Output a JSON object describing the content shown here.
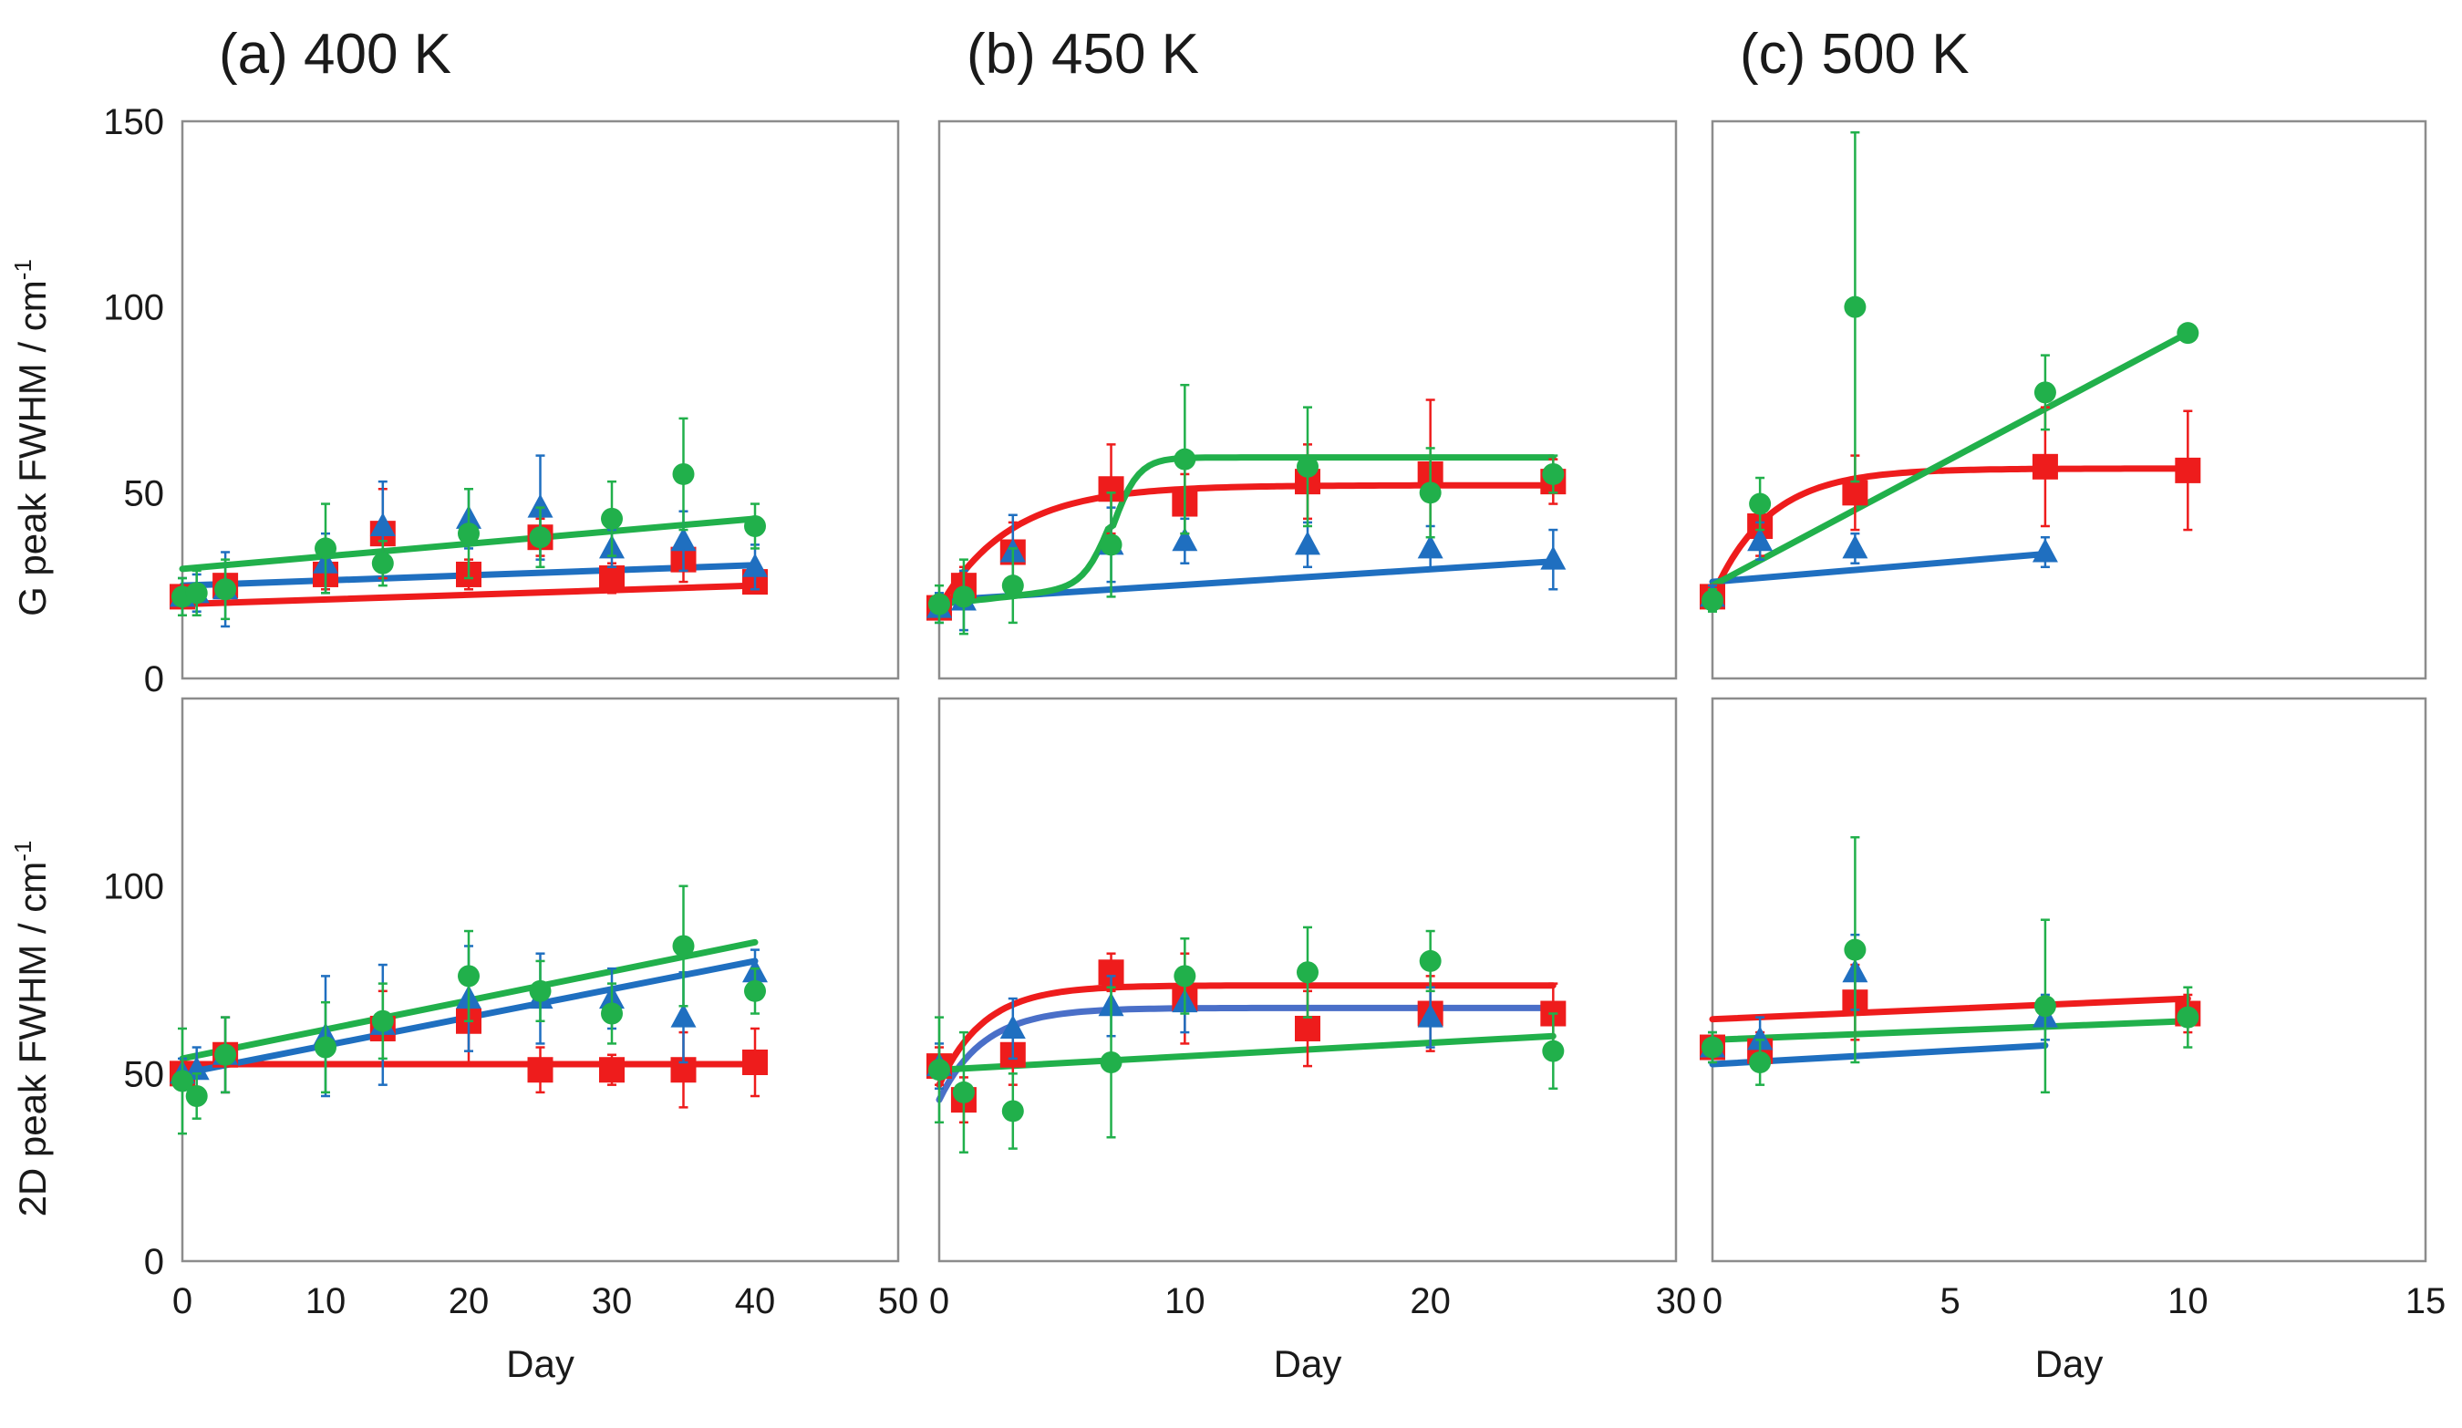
{
  "colors": {
    "red": "#ee1c1c",
    "blue": "#1f6fc0",
    "green": "#21b04b",
    "blue_fit_450_2d": "#4a6fc8"
  },
  "chart_data": {
    "type": "scatter",
    "ylabels": {
      "top": "G peak FWHM / cm",
      "bottom": "2D peak FWHM / cm",
      "superscript": "-1"
    },
    "xlabel": "Day",
    "yticks": {
      "top": [
        "0",
        "50",
        "100",
        "150"
      ],
      "bottom": [
        "0",
        "50",
        "100"
      ]
    },
    "panels": [
      {
        "title": "(a) 400 K",
        "xlim": [
          0,
          50
        ],
        "xticks": [
          "0",
          "10",
          "20",
          "30",
          "40",
          "50"
        ],
        "xtick_values": [
          0,
          10,
          20,
          30,
          40,
          50
        ],
        "G": {
          "ylim": [
            0,
            150
          ],
          "series": [
            {
              "name": "red",
              "marker": "square",
              "x": [
                0,
                3,
                10,
                14,
                20,
                25,
                30,
                35,
                40
              ],
              "y": [
                22,
                25,
                28,
                39,
                28,
                38,
                27,
                32,
                26
              ],
              "err": [
                3,
                3,
                4,
                12,
                4,
                5,
                4,
                6,
                3
              ]
            },
            {
              "name": "blue",
              "marker": "triangle",
              "x": [
                0,
                1,
                3,
                10,
                14,
                20,
                25,
                30,
                35,
                40
              ],
              "y": [
                22,
                23,
                24,
                31,
                41,
                43,
                46,
                35,
                37,
                30
              ],
              "err": [
                5,
                5,
                10,
                8,
                12,
                8,
                14,
                5,
                8,
                6
              ]
            },
            {
              "name": "green",
              "marker": "circle",
              "x": [
                0,
                1,
                3,
                10,
                14,
                20,
                25,
                30,
                35,
                40
              ],
              "y": [
                22,
                23,
                24,
                35,
                31,
                39,
                38,
                43,
                55,
                41
              ],
              "err": [
                5,
                6,
                8,
                12,
                6,
                12,
                8,
                10,
                15,
                6
              ]
            }
          ],
          "fits": [
            {
              "name": "red",
              "x": [
                0,
                40
              ],
              "y": [
                20,
                25
              ]
            },
            {
              "name": "blue",
              "x": [
                0,
                40
              ],
              "y": [
                25,
                30.5
              ]
            },
            {
              "name": "green",
              "x": [
                0,
                40
              ],
              "y": [
                29.5,
                43
              ]
            }
          ]
        },
        "D2": {
          "ylim": [
            0,
            150
          ],
          "series": [
            {
              "name": "red",
              "marker": "square",
              "x": [
                0,
                3,
                14,
                20,
                25,
                30,
                35,
                40
              ],
              "y": [
                50,
                55,
                62,
                64,
                51,
                51,
                51,
                53
              ],
              "err": [
                3,
                10,
                10,
                12,
                6,
                4,
                10,
                9
              ]
            },
            {
              "name": "blue",
              "marker": "triangle",
              "x": [
                0,
                1,
                3,
                10,
                14,
                20,
                25,
                30,
                35,
                40
              ],
              "y": [
                50,
                51,
                55,
                60,
                63,
                70,
                70,
                70,
                65,
                77
              ],
              "err": [
                4,
                6,
                10,
                16,
                16,
                14,
                12,
                8,
                12,
                6
              ]
            },
            {
              "name": "green",
              "marker": "circle",
              "x": [
                0,
                1,
                3,
                10,
                14,
                20,
                25,
                30,
                35,
                40
              ],
              "y": [
                48,
                44,
                55,
                57,
                64,
                76,
                72,
                66,
                84,
                72
              ],
              "err": [
                14,
                6,
                10,
                12,
                10,
                12,
                8,
                8,
                16,
                6
              ]
            }
          ],
          "fits": [
            {
              "name": "red",
              "x": [
                0,
                40
              ],
              "y": [
                52.5,
                52.5
              ]
            },
            {
              "name": "blue",
              "x": [
                0,
                40
              ],
              "y": [
                50,
                80
              ]
            },
            {
              "name": "green",
              "x": [
                0,
                40
              ],
              "y": [
                54,
                85
              ]
            }
          ]
        }
      },
      {
        "title": "(b) 450 K",
        "xlim": [
          0,
          30
        ],
        "xticks": [
          "0",
          "10",
          "20",
          "30"
        ],
        "xtick_values": [
          0,
          10,
          20,
          30
        ],
        "G": {
          "ylim": [
            0,
            150
          ],
          "series": [
            {
              "name": "red",
              "marker": "square",
              "x": [
                0,
                1,
                3,
                7,
                10,
                15,
                20,
                25
              ],
              "y": [
                19,
                25,
                34,
                51,
                47,
                53,
                55,
                53
              ],
              "err": [
                3,
                5,
                8,
                12,
                8,
                10,
                20,
                6
              ]
            },
            {
              "name": "blue",
              "marker": "triangle",
              "x": [
                0,
                1,
                3,
                7,
                10,
                15,
                20,
                25
              ],
              "y": [
                19,
                21,
                34,
                36,
                37,
                36,
                35,
                32
              ],
              "err": [
                4,
                8,
                10,
                10,
                6,
                6,
                6,
                8
              ]
            },
            {
              "name": "green",
              "marker": "circle",
              "x": [
                0,
                1,
                3,
                7,
                10,
                15,
                20,
                25
              ],
              "y": [
                20,
                22,
                25,
                36,
                59,
                57,
                50,
                55
              ],
              "err": [
                5,
                10,
                10,
                14,
                20,
                16,
                12,
                5
              ]
            }
          ],
          "fits": [
            {
              "name": "red",
              "model": "saturating",
              "start": 19,
              "plateau": 52,
              "rate": 0.35,
              "x_end": 25
            },
            {
              "name": "blue",
              "x": [
                0,
                25
              ],
              "y": [
                21,
                31.5
              ]
            },
            {
              "name": "green",
              "model": "sigmoid",
              "low": 20,
              "high": 59.5,
              "mid": 7,
              "width": 0.55,
              "slope": 0.5,
              "x_end": 25
            }
          ]
        },
        "D2": {
          "ylim": [
            0,
            150
          ],
          "series": [
            {
              "name": "red",
              "marker": "square",
              "x": [
                0,
                1,
                3,
                7,
                10,
                15,
                20,
                25
              ],
              "y": [
                52,
                43,
                55,
                77,
                70,
                62,
                66,
                66
              ],
              "err": [
                5,
                6,
                8,
                5,
                12,
                10,
                10,
                8
              ]
            },
            {
              "name": "blue",
              "marker": "triangle",
              "x": [
                0,
                3,
                7,
                10,
                20
              ],
              "y": [
                52,
                62,
                68,
                69,
                65
              ],
              "err": [
                6,
                8,
                8,
                8,
                8
              ]
            },
            {
              "name": "green",
              "marker": "circle",
              "x": [
                0,
                1,
                3,
                7,
                10,
                15,
                20,
                25
              ],
              "y": [
                51,
                45,
                40,
                53,
                76,
                77,
                80,
                56
              ],
              "err": [
                14,
                16,
                10,
                20,
                10,
                12,
                8,
                10
              ]
            }
          ],
          "fits": [
            {
              "name": "red",
              "model": "saturating",
              "start": 47,
              "plateau": 73.5,
              "rate": 0.55,
              "x_end": 25
            },
            {
              "name": "blue_fit_450_2d",
              "model": "saturating",
              "start": 43,
              "plateau": 67.5,
              "rate": 0.55,
              "x_end": 25
            },
            {
              "name": "green",
              "x": [
                0,
                25
              ],
              "y": [
                51,
                60
              ]
            }
          ]
        }
      },
      {
        "title": "(c) 500 K",
        "xlim": [
          0,
          15
        ],
        "xticks": [
          "0",
          "5",
          "10",
          "15"
        ],
        "xtick_values": [
          0,
          5,
          10,
          15
        ],
        "G": {
          "ylim": [
            0,
            150
          ],
          "series": [
            {
              "name": "red",
              "marker": "square",
              "x": [
                0,
                1,
                3,
                7,
                10
              ],
              "y": [
                22,
                41,
                50,
                57,
                56
              ],
              "err": [
                3,
                8,
                10,
                16,
                16
              ]
            },
            {
              "name": "blue",
              "marker": "triangle",
              "x": [
                0,
                1,
                3,
                7
              ],
              "y": [
                22,
                37,
                35,
                34
              ],
              "err": [
                3,
                5,
                4,
                4
              ]
            },
            {
              "name": "green",
              "marker": "circle",
              "x": [
                0,
                1,
                3,
                7,
                10
              ],
              "y": [
                21,
                47,
                100,
                77,
                93
              ],
              "err": [
                3,
                7,
                47,
                10,
                1
              ]
            }
          ],
          "fits": [
            {
              "name": "red",
              "model": "saturating",
              "start": 22,
              "plateau": 56.5,
              "rate": 0.85,
              "x_end": 10
            },
            {
              "name": "blue",
              "x": [
                0,
                7
              ],
              "y": [
                26,
                33.5
              ]
            },
            {
              "name": "green",
              "x": [
                0,
                10
              ],
              "y": [
                25,
                93
              ]
            }
          ]
        },
        "D2": {
          "ylim": [
            0,
            150
          ],
          "series": [
            {
              "name": "red",
              "marker": "square",
              "x": [
                0,
                1,
                3,
                10
              ],
              "y": [
                57,
                56,
                69,
                66
              ],
              "err": [
                3,
                5,
                10,
                5
              ]
            },
            {
              "name": "blue",
              "marker": "triangle",
              "x": [
                0,
                1,
                3,
                7
              ],
              "y": [
                57,
                59,
                77,
                65
              ],
              "err": [
                4,
                6,
                10,
                6
              ]
            },
            {
              "name": "green",
              "marker": "circle",
              "x": [
                0,
                1,
                3,
                7,
                10
              ],
              "y": [
                57,
                53,
                83,
                68,
                65
              ],
              "err": [
                4,
                6,
                30,
                23,
                8
              ]
            }
          ],
          "fits": [
            {
              "name": "red",
              "x": [
                0,
                10
              ],
              "y": [
                64.5,
                70
              ]
            },
            {
              "name": "blue",
              "x": [
                0,
                7
              ],
              "y": [
                52.5,
                57.5
              ]
            },
            {
              "name": "green",
              "x": [
                0,
                10
              ],
              "y": [
                59,
                64
              ]
            }
          ]
        }
      }
    ]
  }
}
